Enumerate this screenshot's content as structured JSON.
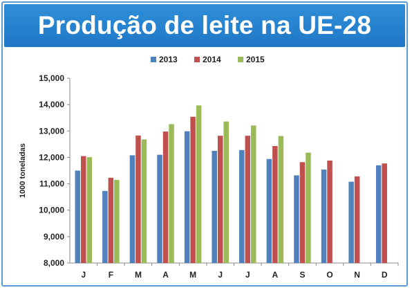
{
  "title": "Produção de leite na UE-28",
  "colors": {
    "title_bar": "#1f78c6",
    "frame": "#5a9bd4",
    "series": [
      "#4f81bd",
      "#c0504d",
      "#9bbb59"
    ]
  },
  "chart_data": {
    "type": "bar",
    "title": "Produção de leite na UE-28",
    "ylabel": "1000 toneladas",
    "xlabel": "",
    "ylim": [
      8000,
      15000
    ],
    "yticks": [
      8000,
      9000,
      10000,
      11000,
      12000,
      13000,
      14000,
      15000
    ],
    "ytick_labels": [
      "8,000",
      "9,000",
      "10,000",
      "11,000",
      "12,000",
      "13,000",
      "14,000",
      "15,000"
    ],
    "grid": false,
    "legend_position": "top",
    "categories": [
      "J",
      "F",
      "M",
      "A",
      "M",
      "J",
      "J",
      "A",
      "S",
      "O",
      "N",
      "D"
    ],
    "series": [
      {
        "name": "2013",
        "values": [
          11500,
          10730,
          12080,
          12100,
          12990,
          12250,
          12280,
          11940,
          11320,
          11540,
          11080,
          11700
        ]
      },
      {
        "name": "2014",
        "values": [
          12050,
          11230,
          12830,
          12980,
          13540,
          12820,
          12820,
          12430,
          11820,
          11880,
          11280,
          11770
        ]
      },
      {
        "name": "2015",
        "values": [
          12010,
          11150,
          12680,
          13260,
          13970,
          13360,
          13210,
          12810,
          12180,
          null,
          null,
          null
        ]
      }
    ]
  }
}
